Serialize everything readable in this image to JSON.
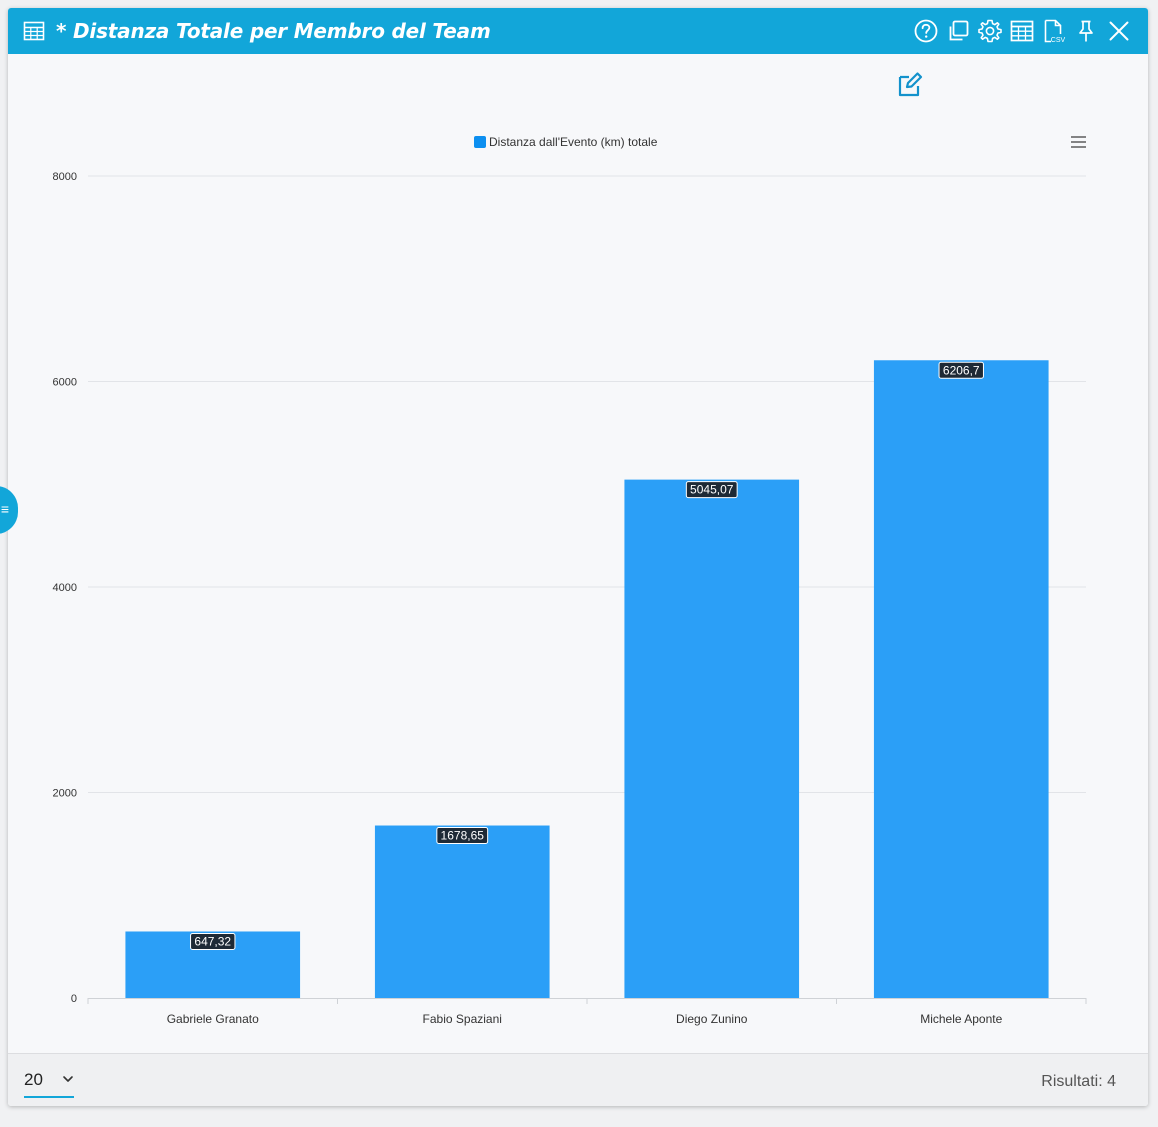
{
  "window": {
    "title": "* Distanza Totale per Membro del Team",
    "toolbar_icons": [
      "help-icon",
      "duplicate-icon",
      "settings-icon",
      "table-icon",
      "csv-icon",
      "pin-icon",
      "close-icon"
    ],
    "csv_icon_label": "CSV"
  },
  "colors": {
    "titlebar": "#12a6d9",
    "bar": "#2b9ff7",
    "legend_swatch": "#0c8ff0"
  },
  "chart_data": {
    "type": "bar",
    "title": "",
    "xlabel": "",
    "ylabel": "",
    "legend": {
      "placement": "top-center",
      "entries": [
        "Distanza dall'Evento (km) totale"
      ]
    },
    "grid": true,
    "ylim": [
      0,
      8000
    ],
    "yticks": [
      0,
      2000,
      4000,
      6000,
      8000
    ],
    "categories": [
      "Gabriele Granato",
      "Fabio Spaziani",
      "Diego Zunino",
      "Michele Aponte"
    ],
    "series": [
      {
        "name": "Distanza dall'Evento (km) totale",
        "values": [
          647.32,
          1678.65,
          5045.07,
          6206.7
        ],
        "labels": [
          "647,32",
          "1678,65",
          "5045,07",
          "6206,7"
        ]
      }
    ]
  },
  "footer": {
    "page_size": "20",
    "results_label": "Risultati: 4"
  }
}
